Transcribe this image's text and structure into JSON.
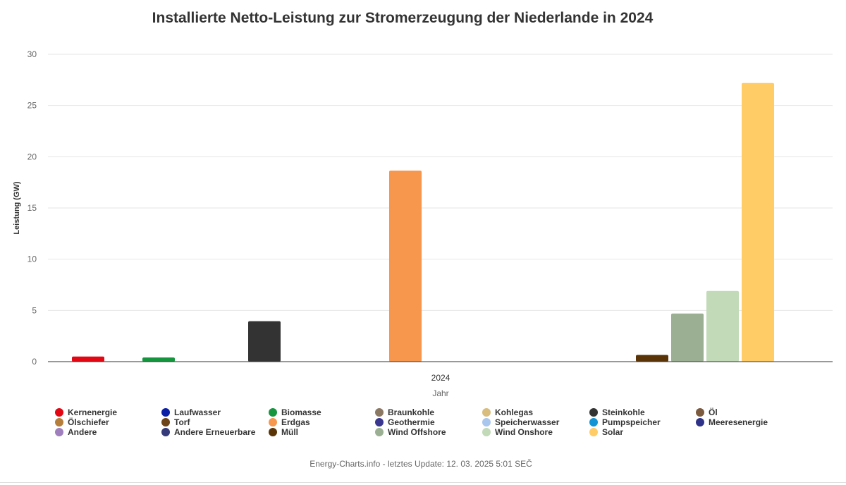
{
  "chart_data": {
    "type": "bar",
    "title": "Installierte Netto-Leistung zur Stromerzeugung der Niederlande in 2024",
    "xlabel": "Jahr",
    "ylabel": "Leistung (GW)",
    "categories": [
      "2024"
    ],
    "ylim": [
      0,
      30
    ],
    "yticks": [
      "0",
      "5",
      "10",
      "15",
      "20",
      "25",
      "30"
    ],
    "grid": true,
    "legend_position": "bottom",
    "series": [
      {
        "name": "Kernenergie",
        "color": "#e30613",
        "values": [
          0.5
        ]
      },
      {
        "name": "Laufwasser",
        "color": "#0a1fa5",
        "values": [
          0
        ]
      },
      {
        "name": "Biomasse",
        "color": "#16953f",
        "values": [
          0.4
        ]
      },
      {
        "name": "Braunkohle",
        "color": "#8b7863",
        "values": [
          0
        ]
      },
      {
        "name": "Kohlegas",
        "color": "#d9bd7e",
        "values": [
          0
        ]
      },
      {
        "name": "Steinkohle",
        "color": "#333333",
        "values": [
          3.95
        ]
      },
      {
        "name": "Öl",
        "color": "#7b5a3d",
        "values": [
          0
        ]
      },
      {
        "name": "Ölschiefer",
        "color": "#b57e3a",
        "values": [
          0
        ]
      },
      {
        "name": "Torf",
        "color": "#6d4418",
        "values": [
          0
        ]
      },
      {
        "name": "Erdgas",
        "color": "#f7964d",
        "values": [
          18.65
        ]
      },
      {
        "name": "Geothermie",
        "color": "#3a3791",
        "values": [
          0
        ]
      },
      {
        "name": "Speicherwasser",
        "color": "#a9c6ee",
        "values": [
          0
        ]
      },
      {
        "name": "Pumpspeicher",
        "color": "#1294d5",
        "values": [
          0
        ]
      },
      {
        "name": "Meeresenergie",
        "color": "#2e3389",
        "values": [
          0
        ]
      },
      {
        "name": "Andere",
        "color": "#9f7fbd",
        "values": [
          0
        ]
      },
      {
        "name": "Andere Erneuerbare",
        "color": "#343a7a",
        "values": [
          0
        ]
      },
      {
        "name": "Müll",
        "color": "#5a3406",
        "values": [
          0.65
        ]
      },
      {
        "name": "Wind Offshore",
        "color": "#9bb093",
        "values": [
          4.7
        ]
      },
      {
        "name": "Wind Onshore",
        "color": "#c2dab8",
        "values": [
          6.9
        ]
      },
      {
        "name": "Solar",
        "color": "#ffcc66",
        "values": [
          27.2
        ]
      }
    ]
  },
  "credits": "Energy-Charts.info - letztes Update: 12. 03. 2025 5:01 SEČ"
}
